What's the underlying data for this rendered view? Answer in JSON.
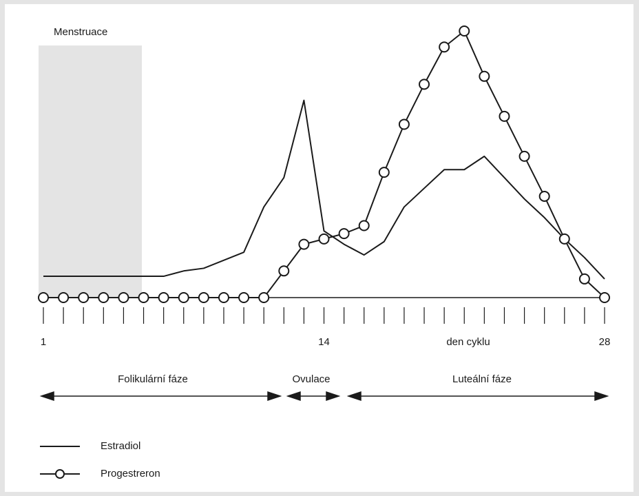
{
  "chart_data": {
    "type": "line",
    "shaded_label": "Menstruace",
    "categories": [
      "1",
      null,
      null,
      null,
      null,
      null,
      null,
      null,
      null,
      null,
      null,
      null,
      null,
      null,
      "14",
      null,
      null,
      null,
      null,
      null,
      null,
      null,
      null,
      null,
      null,
      null,
      null,
      null,
      "28"
    ],
    "x_label": "den cyklu",
    "ylim": [
      0,
      100
    ],
    "series": [
      {
        "name": "Estradiol",
        "color": "#1a1a1a",
        "marker": "none",
        "values": [
          8,
          8,
          8,
          8,
          8,
          8,
          8,
          10,
          11,
          14,
          17,
          34,
          45,
          74,
          25,
          20,
          16,
          21,
          34,
          41,
          48,
          48,
          53,
          45,
          37,
          30,
          22,
          15,
          7
        ]
      },
      {
        "name": "Progestreron",
        "color": "#1a1a1a",
        "marker": "circle",
        "values": [
          0,
          0,
          0,
          0,
          0,
          0,
          0,
          0,
          0,
          0,
          0,
          0,
          10,
          20,
          22,
          24,
          27,
          47,
          65,
          80,
          94,
          100,
          83,
          68,
          53,
          38,
          22,
          7,
          0
        ]
      }
    ],
    "phases": [
      "Folikulární fáze",
      "Ovulace",
      "Luteální fáze"
    ]
  }
}
